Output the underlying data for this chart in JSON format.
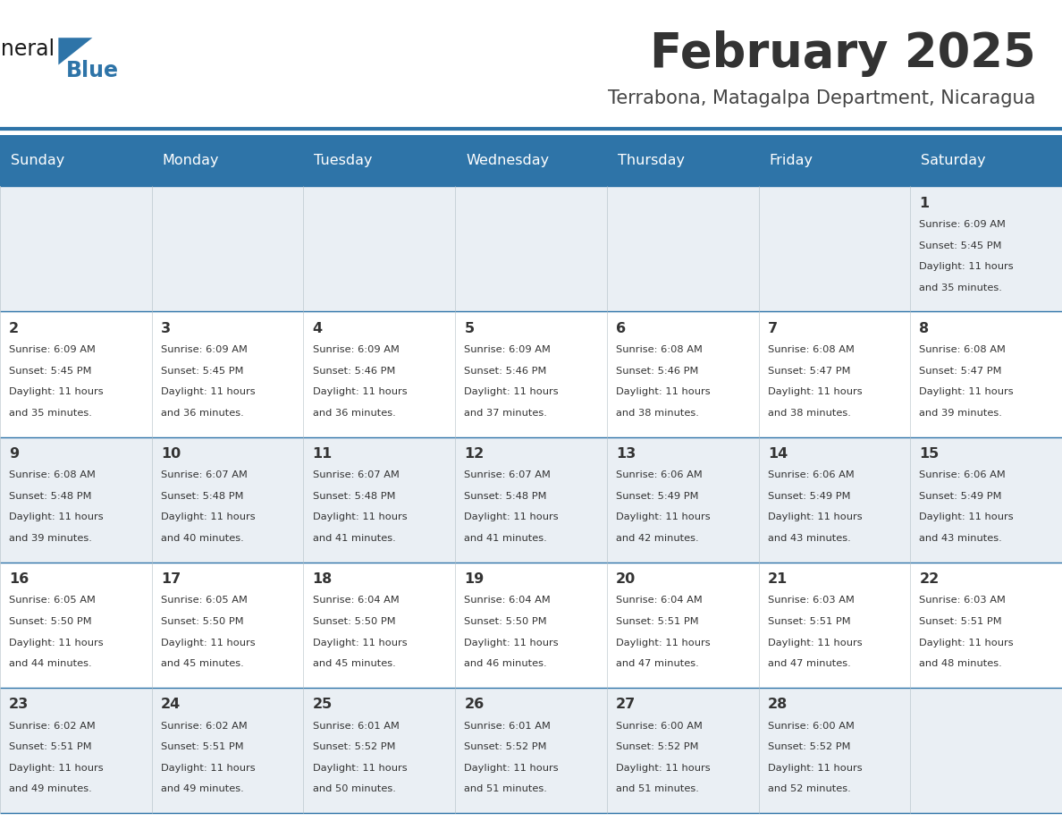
{
  "title": "February 2025",
  "subtitle": "Terrabona, Matagalpa Department, Nicaragua",
  "days_of_week": [
    "Sunday",
    "Monday",
    "Tuesday",
    "Wednesday",
    "Thursday",
    "Friday",
    "Saturday"
  ],
  "header_bg": "#2E74A8",
  "header_text": "#FFFFFF",
  "cell_bg_even": "#EAEFF4",
  "cell_bg_odd": "#FFFFFF",
  "separator_color": "#2E74A8",
  "grid_line_color": "#B0BEC5",
  "title_color": "#333333",
  "subtitle_color": "#444444",
  "day_number_color": "#333333",
  "cell_text_color": "#333333",
  "logo_general_color": "#1a1a1a",
  "logo_blue_color": "#2E74A8",
  "calendar_data": [
    [
      null,
      null,
      null,
      null,
      null,
      null,
      {
        "day": 1,
        "sunrise": "6:09 AM",
        "sunset": "5:45 PM",
        "daylight": "11 hours and 35 minutes."
      }
    ],
    [
      {
        "day": 2,
        "sunrise": "6:09 AM",
        "sunset": "5:45 PM",
        "daylight": "11 hours and 35 minutes."
      },
      {
        "day": 3,
        "sunrise": "6:09 AM",
        "sunset": "5:45 PM",
        "daylight": "11 hours and 36 minutes."
      },
      {
        "day": 4,
        "sunrise": "6:09 AM",
        "sunset": "5:46 PM",
        "daylight": "11 hours and 36 minutes."
      },
      {
        "day": 5,
        "sunrise": "6:09 AM",
        "sunset": "5:46 PM",
        "daylight": "11 hours and 37 minutes."
      },
      {
        "day": 6,
        "sunrise": "6:08 AM",
        "sunset": "5:46 PM",
        "daylight": "11 hours and 38 minutes."
      },
      {
        "day": 7,
        "sunrise": "6:08 AM",
        "sunset": "5:47 PM",
        "daylight": "11 hours and 38 minutes."
      },
      {
        "day": 8,
        "sunrise": "6:08 AM",
        "sunset": "5:47 PM",
        "daylight": "11 hours and 39 minutes."
      }
    ],
    [
      {
        "day": 9,
        "sunrise": "6:08 AM",
        "sunset": "5:48 PM",
        "daylight": "11 hours and 39 minutes."
      },
      {
        "day": 10,
        "sunrise": "6:07 AM",
        "sunset": "5:48 PM",
        "daylight": "11 hours and 40 minutes."
      },
      {
        "day": 11,
        "sunrise": "6:07 AM",
        "sunset": "5:48 PM",
        "daylight": "11 hours and 41 minutes."
      },
      {
        "day": 12,
        "sunrise": "6:07 AM",
        "sunset": "5:48 PM",
        "daylight": "11 hours and 41 minutes."
      },
      {
        "day": 13,
        "sunrise": "6:06 AM",
        "sunset": "5:49 PM",
        "daylight": "11 hours and 42 minutes."
      },
      {
        "day": 14,
        "sunrise": "6:06 AM",
        "sunset": "5:49 PM",
        "daylight": "11 hours and 43 minutes."
      },
      {
        "day": 15,
        "sunrise": "6:06 AM",
        "sunset": "5:49 PM",
        "daylight": "11 hours and 43 minutes."
      }
    ],
    [
      {
        "day": 16,
        "sunrise": "6:05 AM",
        "sunset": "5:50 PM",
        "daylight": "11 hours and 44 minutes."
      },
      {
        "day": 17,
        "sunrise": "6:05 AM",
        "sunset": "5:50 PM",
        "daylight": "11 hours and 45 minutes."
      },
      {
        "day": 18,
        "sunrise": "6:04 AM",
        "sunset": "5:50 PM",
        "daylight": "11 hours and 45 minutes."
      },
      {
        "day": 19,
        "sunrise": "6:04 AM",
        "sunset": "5:50 PM",
        "daylight": "11 hours and 46 minutes."
      },
      {
        "day": 20,
        "sunrise": "6:04 AM",
        "sunset": "5:51 PM",
        "daylight": "11 hours and 47 minutes."
      },
      {
        "day": 21,
        "sunrise": "6:03 AM",
        "sunset": "5:51 PM",
        "daylight": "11 hours and 47 minutes."
      },
      {
        "day": 22,
        "sunrise": "6:03 AM",
        "sunset": "5:51 PM",
        "daylight": "11 hours and 48 minutes."
      }
    ],
    [
      {
        "day": 23,
        "sunrise": "6:02 AM",
        "sunset": "5:51 PM",
        "daylight": "11 hours and 49 minutes."
      },
      {
        "day": 24,
        "sunrise": "6:02 AM",
        "sunset": "5:51 PM",
        "daylight": "11 hours and 49 minutes."
      },
      {
        "day": 25,
        "sunrise": "6:01 AM",
        "sunset": "5:52 PM",
        "daylight": "11 hours and 50 minutes."
      },
      {
        "day": 26,
        "sunrise": "6:01 AM",
        "sunset": "5:52 PM",
        "daylight": "11 hours and 51 minutes."
      },
      {
        "day": 27,
        "sunrise": "6:00 AM",
        "sunset": "5:52 PM",
        "daylight": "11 hours and 51 minutes."
      },
      {
        "day": 28,
        "sunrise": "6:00 AM",
        "sunset": "5:52 PM",
        "daylight": "11 hours and 52 minutes."
      },
      null
    ]
  ]
}
